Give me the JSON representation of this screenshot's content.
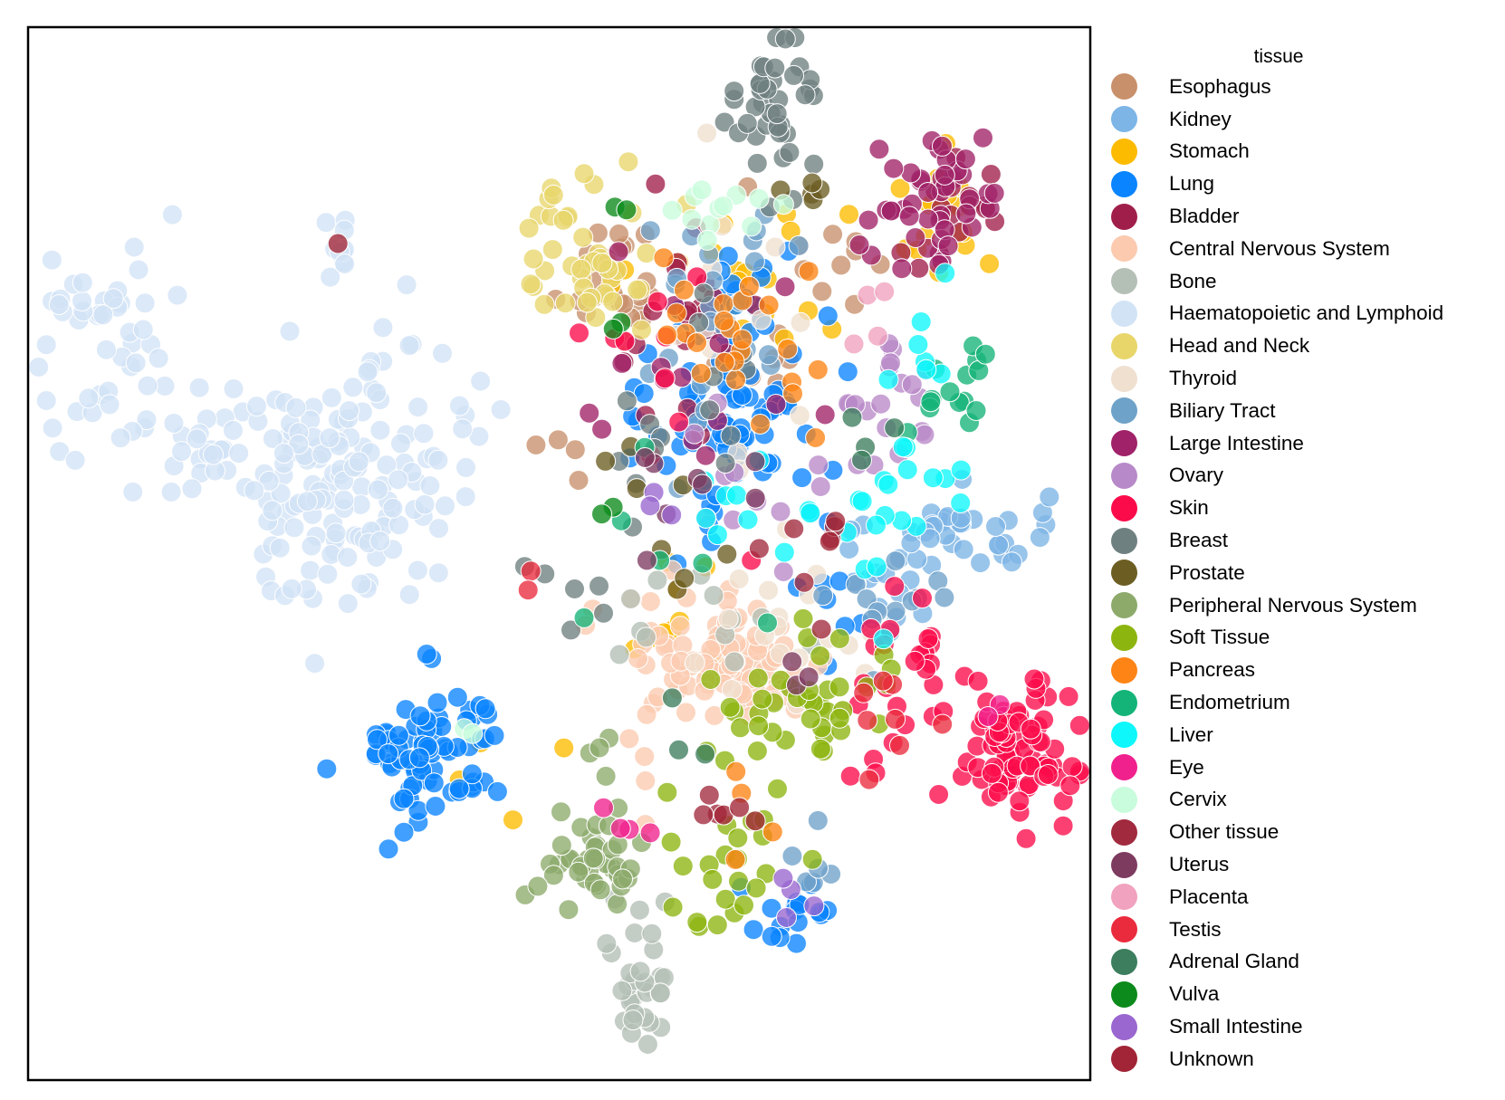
{
  "chart_data": {
    "type": "scatter",
    "title": "",
    "xlabel": "",
    "ylabel": "",
    "xlim": [
      0,
      1
    ],
    "ylim": [
      0,
      1
    ],
    "grid": false,
    "ticks": false,
    "legend": {
      "title": "tissue",
      "placement": "outside-right"
    },
    "series": [
      {
        "name": "Esophagus",
        "color": "#c8906b",
        "clusters": [
          [
            0.55,
            0.76,
            0.03,
            0.03,
            25
          ],
          [
            0.69,
            0.69,
            0.02,
            0.03,
            6
          ],
          [
            0.75,
            0.79,
            0.03,
            0.03,
            10
          ],
          [
            0.5,
            0.59,
            0.01,
            0.02,
            4
          ]
        ]
      },
      {
        "name": "Kidney",
        "color": "#7cb5e6",
        "clusters": [
          [
            0.88,
            0.52,
            0.04,
            0.02,
            35
          ],
          [
            0.81,
            0.47,
            0.03,
            0.04,
            14
          ]
        ]
      },
      {
        "name": "Stomach",
        "color": "#fdbb00",
        "clusters": [
          [
            0.85,
            0.83,
            0.03,
            0.03,
            16
          ],
          [
            0.67,
            0.76,
            0.05,
            0.04,
            20
          ],
          [
            0.62,
            0.46,
            0.04,
            0.04,
            10
          ],
          [
            0.44,
            0.3,
            0.02,
            0.02,
            4
          ]
        ]
      },
      {
        "name": "Lung",
        "color": "#0a84ff",
        "clusters": [
          [
            0.38,
            0.31,
            0.035,
            0.035,
            75
          ],
          [
            0.67,
            0.65,
            0.04,
            0.07,
            95
          ],
          [
            0.72,
            0.16,
            0.02,
            0.03,
            16
          ],
          [
            0.77,
            0.44,
            0.03,
            0.03,
            8
          ]
        ]
      },
      {
        "name": "Bladder",
        "color": "#a01f4a",
        "clusters": [
          [
            0.87,
            0.82,
            0.03,
            0.03,
            15
          ],
          [
            0.61,
            0.72,
            0.04,
            0.05,
            20
          ]
        ]
      },
      {
        "name": "Central Nervous System",
        "color": "#fbcaaf",
        "clusters": [
          [
            0.66,
            0.4,
            0.05,
            0.03,
            95
          ],
          [
            0.58,
            0.28,
            0.01,
            0.02,
            4
          ]
        ]
      },
      {
        "name": "Bone",
        "color": "#b4bfb5",
        "clusters": [
          [
            0.58,
            0.1,
            0.015,
            0.04,
            30
          ],
          [
            0.62,
            0.44,
            0.04,
            0.03,
            12
          ]
        ]
      },
      {
        "name": "Haematopoietic and Lymphoid",
        "color": "#d2e3f6",
        "clusters": [
          [
            0.28,
            0.56,
            0.05,
            0.05,
            120
          ],
          [
            0.08,
            0.67,
            0.04,
            0.06,
            40
          ],
          [
            0.17,
            0.61,
            0.02,
            0.03,
            20
          ],
          [
            0.36,
            0.62,
            0.03,
            0.06,
            40
          ],
          [
            0.06,
            0.74,
            0.015,
            0.01,
            12
          ],
          [
            0.29,
            0.79,
            0.01,
            0.015,
            10
          ]
        ]
      },
      {
        "name": "Head and Neck",
        "color": "#e8d66b",
        "clusters": [
          [
            0.53,
            0.79,
            0.04,
            0.04,
            45
          ]
        ]
      },
      {
        "name": "Thyroid",
        "color": "#efe0d0",
        "clusters": [
          [
            0.72,
            0.42,
            0.04,
            0.04,
            20
          ],
          [
            0.65,
            0.71,
            0.05,
            0.08,
            12
          ]
        ]
      },
      {
        "name": "Biliary Tract",
        "color": "#6fa2c9",
        "clusters": [
          [
            0.66,
            0.73,
            0.05,
            0.06,
            25
          ],
          [
            0.8,
            0.45,
            0.04,
            0.03,
            12
          ],
          [
            0.74,
            0.19,
            0.01,
            0.02,
            6
          ]
        ]
      },
      {
        "name": "Large Intestine",
        "color": "#a02268",
        "clusters": [
          [
            0.86,
            0.84,
            0.035,
            0.035,
            45
          ],
          [
            0.62,
            0.64,
            0.05,
            0.06,
            15
          ]
        ]
      },
      {
        "name": "Ovary",
        "color": "#b889c8",
        "clusters": [
          [
            0.8,
            0.63,
            0.03,
            0.04,
            20
          ],
          [
            0.67,
            0.56,
            0.05,
            0.05,
            10
          ]
        ]
      },
      {
        "name": "Skin",
        "color": "#fb0b4a",
        "clusters": [
          [
            0.93,
            0.31,
            0.025,
            0.03,
            80
          ],
          [
            0.84,
            0.38,
            0.03,
            0.04,
            30
          ],
          [
            0.63,
            0.7,
            0.05,
            0.08,
            10
          ]
        ]
      },
      {
        "name": "Breast",
        "color": "#6f8080",
        "clusters": [
          [
            0.7,
            0.92,
            0.02,
            0.04,
            40
          ],
          [
            0.61,
            0.64,
            0.05,
            0.08,
            15
          ],
          [
            0.5,
            0.47,
            0.02,
            0.03,
            6
          ]
        ]
      },
      {
        "name": "Prostate",
        "color": "#6c5e23",
        "clusters": [
          [
            0.73,
            0.85,
            0.01,
            0.02,
            5
          ],
          [
            0.61,
            0.52,
            0.03,
            0.04,
            8
          ]
        ]
      },
      {
        "name": "Peripheral Nervous System",
        "color": "#8daa6b",
        "clusters": [
          [
            0.53,
            0.21,
            0.025,
            0.02,
            40
          ],
          [
            0.54,
            0.32,
            0.01,
            0.02,
            4
          ]
        ]
      },
      {
        "name": "Soft Tissue",
        "color": "#8db510",
        "clusters": [
          [
            0.74,
            0.36,
            0.05,
            0.03,
            40
          ],
          [
            0.66,
            0.21,
            0.03,
            0.04,
            25
          ]
        ]
      },
      {
        "name": "Pancreas",
        "color": "#fd8415",
        "clusters": [
          [
            0.67,
            0.7,
            0.05,
            0.05,
            25
          ],
          [
            0.7,
            0.25,
            0.02,
            0.02,
            4
          ]
        ]
      },
      {
        "name": "Endometrium",
        "color": "#14b478",
        "clusters": [
          [
            0.87,
            0.65,
            0.03,
            0.03,
            15
          ],
          [
            0.62,
            0.52,
            0.05,
            0.05,
            6
          ]
        ]
      },
      {
        "name": "Liver",
        "color": "#0ef7fa",
        "clusters": [
          [
            0.82,
            0.54,
            0.03,
            0.04,
            20
          ],
          [
            0.67,
            0.53,
            0.04,
            0.03,
            10
          ],
          [
            0.85,
            0.7,
            0.02,
            0.02,
            6
          ]
        ]
      },
      {
        "name": "Eye",
        "color": "#f0218d",
        "clusters": [
          [
            0.56,
            0.24,
            0.015,
            0.01,
            4
          ],
          [
            0.91,
            0.34,
            0.01,
            0.01,
            2
          ]
        ]
      },
      {
        "name": "Cervix",
        "color": "#c8fcdc",
        "clusters": [
          [
            0.64,
            0.82,
            0.04,
            0.02,
            12
          ],
          [
            0.42,
            0.34,
            0.01,
            0.01,
            2
          ]
        ]
      },
      {
        "name": "Other tissue",
        "color": "#a12a3e",
        "clusters": [
          [
            0.73,
            0.52,
            0.03,
            0.03,
            6
          ],
          [
            0.64,
            0.25,
            0.01,
            0.01,
            3
          ]
        ]
      },
      {
        "name": "Uterus",
        "color": "#7e3b60",
        "clusters": [
          [
            0.66,
            0.55,
            0.04,
            0.04,
            8
          ],
          [
            0.73,
            0.38,
            0.01,
            0.01,
            3
          ]
        ]
      },
      {
        "name": "Placenta",
        "color": "#f0a2be",
        "clusters": [
          [
            0.79,
            0.72,
            0.01,
            0.02,
            4
          ]
        ]
      },
      {
        "name": "Testis",
        "color": "#ea2b3d",
        "clusters": [
          [
            0.79,
            0.33,
            0.04,
            0.03,
            8
          ],
          [
            0.47,
            0.48,
            0.01,
            0.01,
            2
          ]
        ]
      },
      {
        "name": "Adrenal Gland",
        "color": "#3c7e5e",
        "clusters": [
          [
            0.79,
            0.62,
            0.02,
            0.02,
            4
          ],
          [
            0.62,
            0.33,
            0.02,
            0.02,
            3
          ]
        ]
      },
      {
        "name": "Vulva",
        "color": "#0c8a1b",
        "clusters": [
          [
            0.55,
            0.83,
            0.01,
            0.01,
            2
          ],
          [
            0.55,
            0.72,
            0.01,
            0.01,
            2
          ],
          [
            0.55,
            0.55,
            0.01,
            0.01,
            2
          ]
        ]
      },
      {
        "name": "Small Intestine",
        "color": "#9a66cf",
        "clusters": [
          [
            0.72,
            0.18,
            0.01,
            0.02,
            4
          ],
          [
            0.61,
            0.53,
            0.02,
            0.02,
            3
          ]
        ]
      },
      {
        "name": "Unknown",
        "color": "#a12536",
        "clusters": [
          [
            0.66,
            0.25,
            0.01,
            0.01,
            3
          ],
          [
            0.29,
            0.8,
            0.005,
            0.005,
            1
          ],
          [
            0.75,
            0.52,
            0.01,
            0.01,
            2
          ]
        ]
      }
    ]
  }
}
